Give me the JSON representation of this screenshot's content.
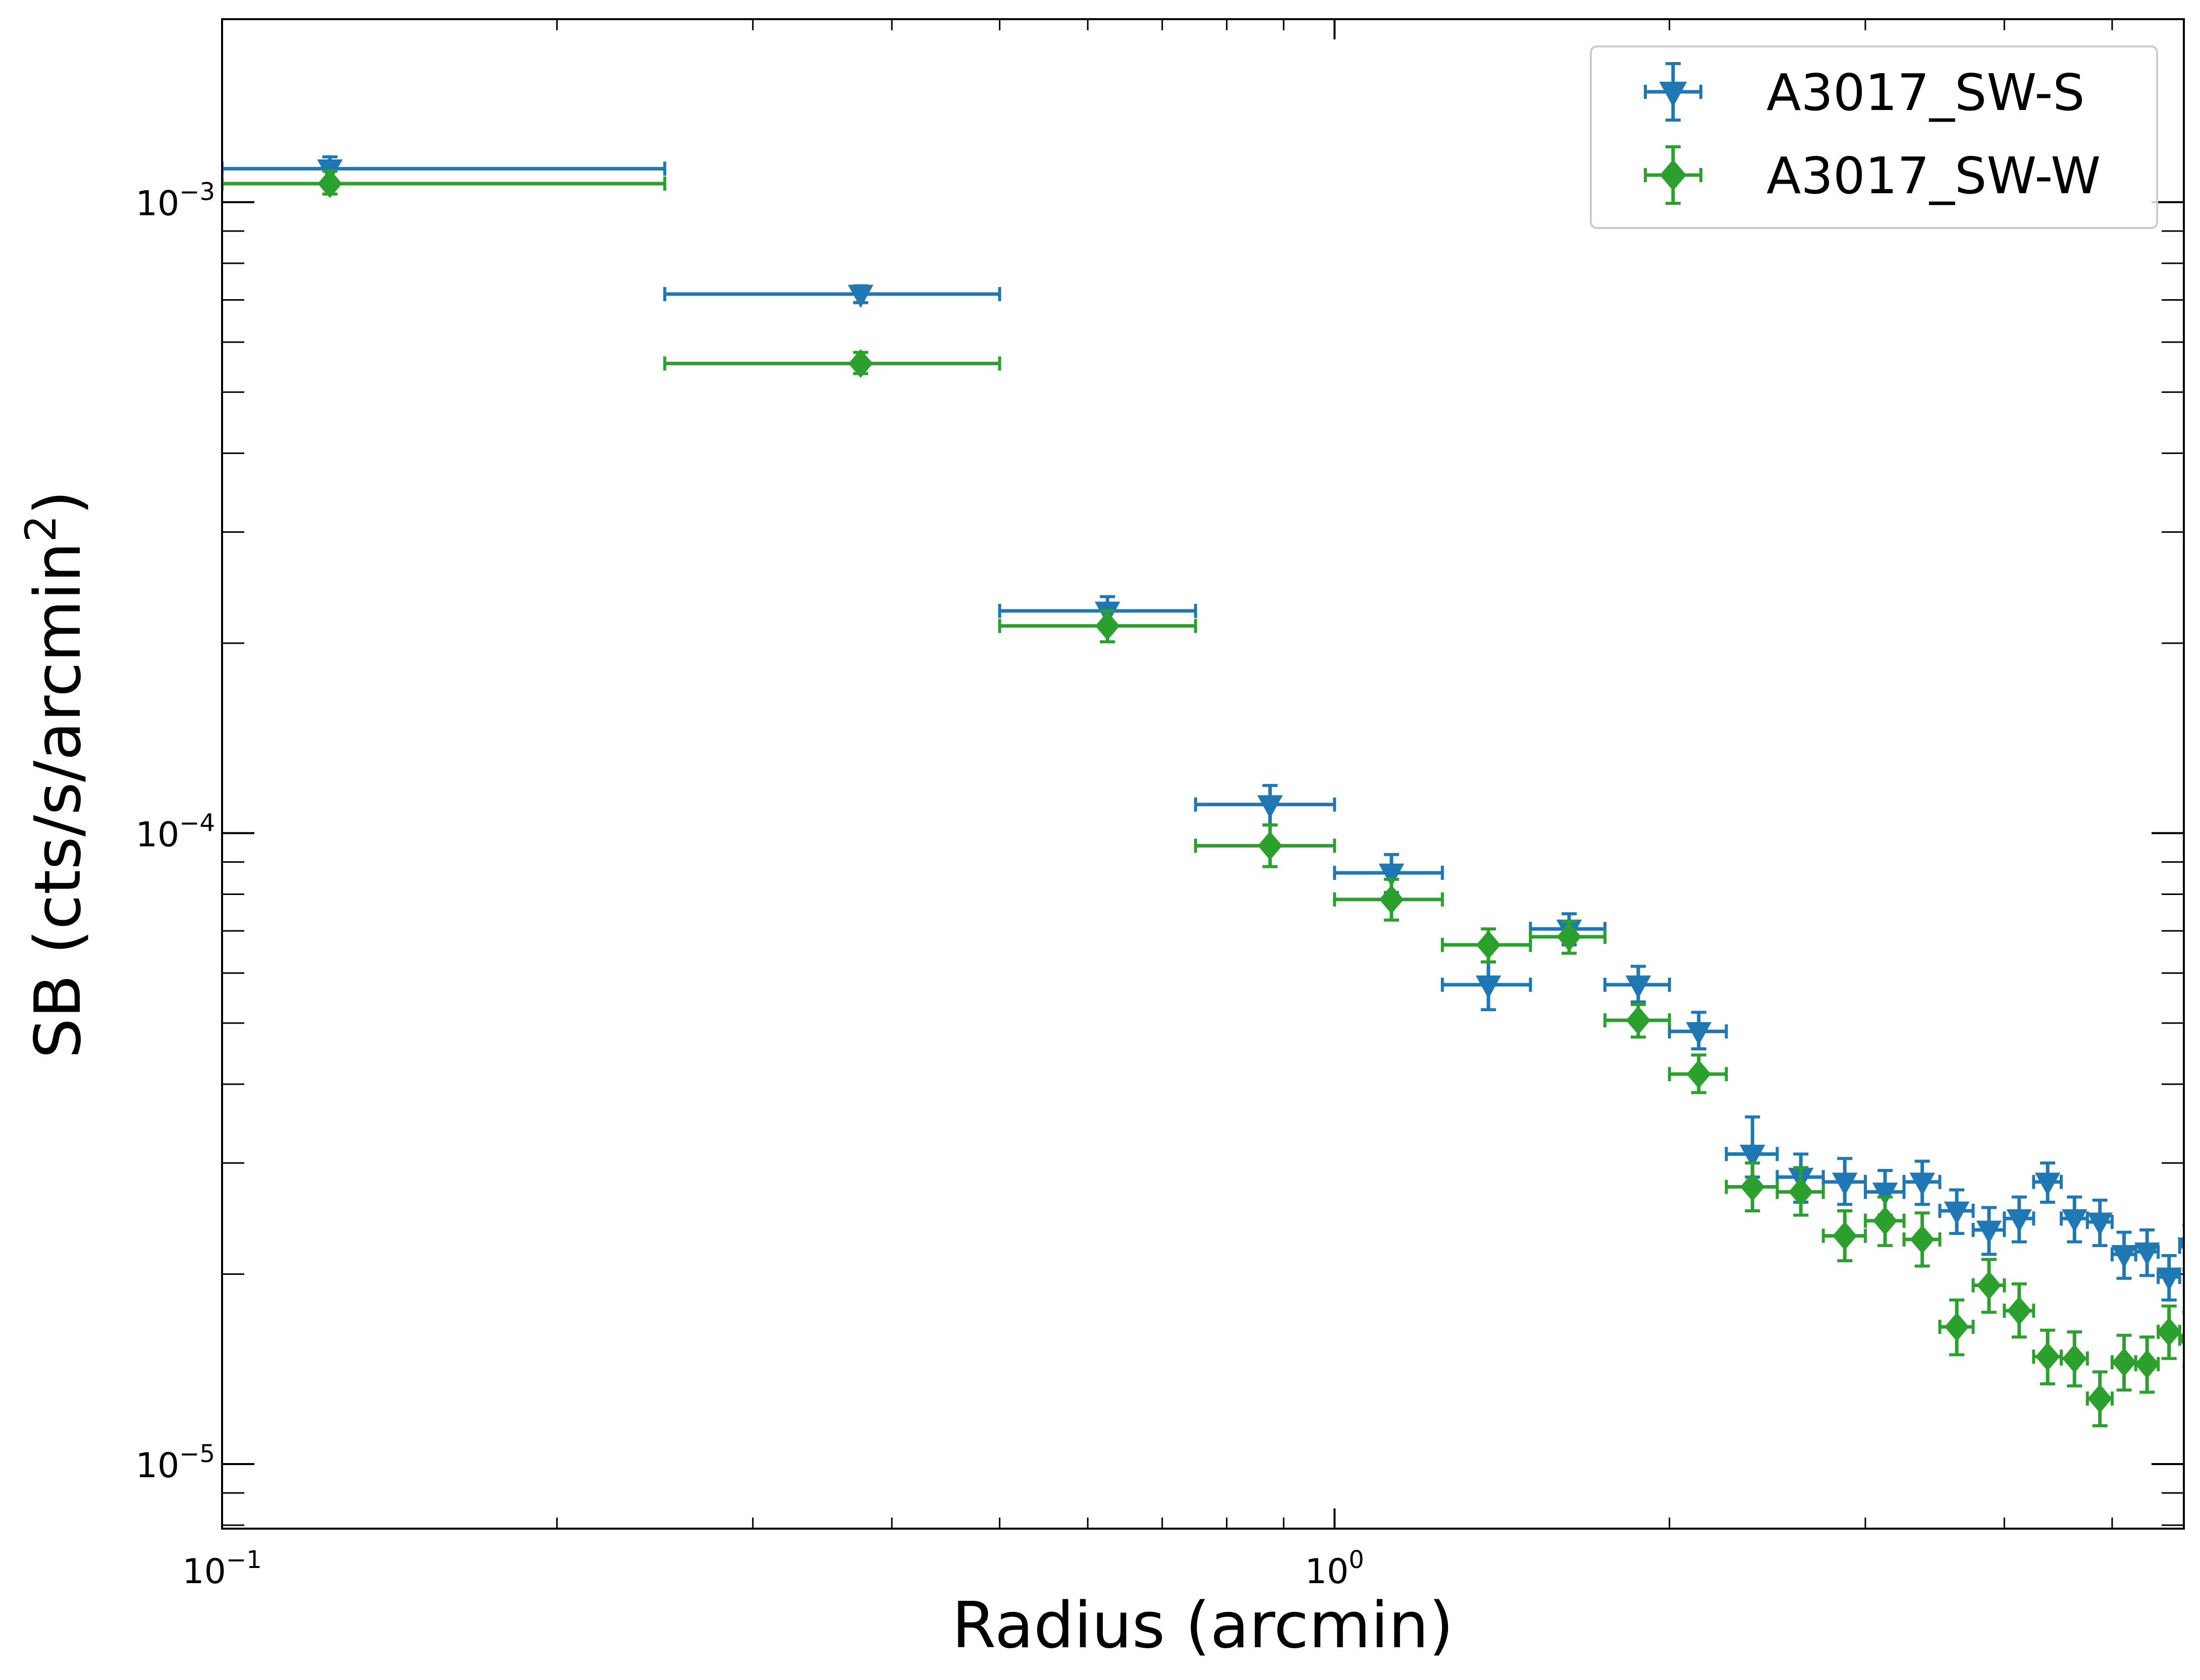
{
  "chart_data": {
    "type": "scatter",
    "xlabel": "Radius (arcmin)",
    "ylabel": "SB (cts/s/arcmin",
    "ylabel_superscript": "2",
    "ylabel_suffix": ")",
    "xscale": "log",
    "yscale": "log",
    "xlim": [
      0.1,
      5.8
    ],
    "ylim": [
      7.9e-06,
      0.00195
    ],
    "x_tick_labels": [
      {
        "value": 0.1,
        "base": "10",
        "exp": "−1"
      },
      {
        "value": 1,
        "base": "10",
        "exp": "0"
      }
    ],
    "y_tick_labels": [
      {
        "value": 1e-05,
        "base": "10",
        "exp": "−5"
      },
      {
        "value": 0.0001,
        "base": "10",
        "exp": "−4"
      },
      {
        "value": 0.001,
        "base": "10",
        "exp": "−3"
      }
    ],
    "grid": false,
    "legend": {
      "placement": "top-right"
    },
    "series": [
      {
        "name": "A3017_SW-S",
        "color": "#1f77b4",
        "marker": "triangle-down",
        "points": [
          {
            "x": 0.125,
            "xlo": 0.1,
            "xhi": 0.25,
            "y": 0.00113,
            "ylo": 0.00108,
            "yhi": 0.00118
          },
          {
            "x": 0.375,
            "xlo": 0.25,
            "xhi": 0.5,
            "y": 0.000715,
            "ylo": 0.000693,
            "yhi": 0.000737
          },
          {
            "x": 0.625,
            "xlo": 0.5,
            "xhi": 0.75,
            "y": 0.000225,
            "ylo": 0.000213,
            "yhi": 0.000237
          },
          {
            "x": 0.875,
            "xlo": 0.75,
            "xhi": 1.0,
            "y": 0.000111,
            "ylo": 0.000103,
            "yhi": 0.000119
          },
          {
            "x": 1.125,
            "xlo": 1.0,
            "xhi": 1.25,
            "y": 8.65e-05,
            "ylo": 8.05e-05,
            "yhi": 9.25e-05
          },
          {
            "x": 1.375,
            "xlo": 1.25,
            "xhi": 1.5,
            "y": 5.75e-05,
            "ylo": 5.25e-05,
            "yhi": 6.25e-05
          },
          {
            "x": 1.625,
            "xlo": 1.5,
            "xhi": 1.75,
            "y": 7.05e-05,
            "ylo": 6.65e-05,
            "yhi": 7.45e-05
          },
          {
            "x": 1.875,
            "xlo": 1.75,
            "xhi": 2.0,
            "y": 5.75e-05,
            "ylo": 5.4e-05,
            "yhi": 6.15e-05
          },
          {
            "x": 2.125,
            "xlo": 2.0,
            "xhi": 2.25,
            "y": 4.85e-05,
            "ylo": 4.55e-05,
            "yhi": 5.2e-05
          },
          {
            "x": 2.375,
            "xlo": 2.25,
            "xhi": 2.5,
            "y": 3.1e-05,
            "ylo": 2.85e-05,
            "yhi": 3.55e-05
          },
          {
            "x": 2.625,
            "xlo": 2.5,
            "xhi": 2.75,
            "y": 2.85e-05,
            "ylo": 2.6e-05,
            "yhi": 3.1e-05
          },
          {
            "x": 2.875,
            "xlo": 2.75,
            "xhi": 3.0,
            "y": 2.8e-05,
            "ylo": 2.58e-05,
            "yhi": 3.05e-05
          },
          {
            "x": 3.125,
            "xlo": 3.0,
            "xhi": 3.25,
            "y": 2.7e-05,
            "ylo": 2.48e-05,
            "yhi": 2.92e-05
          },
          {
            "x": 3.375,
            "xlo": 3.25,
            "xhi": 3.5,
            "y": 2.8e-05,
            "ylo": 2.58e-05,
            "yhi": 3.02e-05
          },
          {
            "x": 3.625,
            "xlo": 3.5,
            "xhi": 3.75,
            "y": 2.52e-05,
            "ylo": 2.32e-05,
            "yhi": 2.72e-05
          },
          {
            "x": 3.875,
            "xlo": 3.75,
            "xhi": 4.0,
            "y": 2.35e-05,
            "ylo": 2.15e-05,
            "yhi": 2.55e-05
          },
          {
            "x": 4.125,
            "xlo": 4.0,
            "xhi": 4.25,
            "y": 2.45e-05,
            "ylo": 2.25e-05,
            "yhi": 2.65e-05
          },
          {
            "x": 4.375,
            "xlo": 4.25,
            "xhi": 4.5,
            "y": 2.8e-05,
            "ylo": 2.6e-05,
            "yhi": 3e-05
          },
          {
            "x": 4.625,
            "xlo": 4.5,
            "xhi": 4.75,
            "y": 2.45e-05,
            "ylo": 2.25e-05,
            "yhi": 2.65e-05
          },
          {
            "x": 4.875,
            "xlo": 4.75,
            "xhi": 5.0,
            "y": 2.42e-05,
            "ylo": 2.22e-05,
            "yhi": 2.62e-05
          },
          {
            "x": 5.125,
            "xlo": 5.0,
            "xhi": 5.25,
            "y": 2.15e-05,
            "ylo": 1.97e-05,
            "yhi": 2.33e-05
          },
          {
            "x": 5.375,
            "xlo": 5.25,
            "xhi": 5.5,
            "y": 2.17e-05,
            "ylo": 1.99e-05,
            "yhi": 2.35e-05
          },
          {
            "x": 5.625,
            "xlo": 5.5,
            "xhi": 5.75,
            "y": 1.98e-05,
            "ylo": 1.82e-05,
            "yhi": 2.14e-05
          },
          {
            "x": 5.875,
            "xlo": 5.75,
            "xhi": 6.0,
            "y": 2.21e-05,
            "ylo": 2.03e-05,
            "yhi": 2.39e-05
          }
        ]
      },
      {
        "name": "A3017_SW-W",
        "color": "#2ca02c",
        "marker": "diamond",
        "points": [
          {
            "x": 0.125,
            "xlo": 0.1,
            "xhi": 0.25,
            "y": 0.00107,
            "ylo": 0.00103,
            "yhi": 0.00112
          },
          {
            "x": 0.375,
            "xlo": 0.25,
            "xhi": 0.5,
            "y": 0.000555,
            "ylo": 0.000535,
            "yhi": 0.000578
          },
          {
            "x": 0.625,
            "xlo": 0.5,
            "xhi": 0.75,
            "y": 0.000213,
            "ylo": 0.000201,
            "yhi": 0.000225
          },
          {
            "x": 0.875,
            "xlo": 0.75,
            "xhi": 1.0,
            "y": 9.55e-05,
            "ylo": 8.85e-05,
            "yhi": 0.000103
          },
          {
            "x": 1.125,
            "xlo": 1.0,
            "xhi": 1.25,
            "y": 7.85e-05,
            "ylo": 7.28e-05,
            "yhi": 8.45e-05
          },
          {
            "x": 1.375,
            "xlo": 1.25,
            "xhi": 1.5,
            "y": 6.65e-05,
            "ylo": 6.25e-05,
            "yhi": 7.05e-05
          },
          {
            "x": 1.625,
            "xlo": 1.5,
            "xhi": 1.75,
            "y": 6.85e-05,
            "ylo": 6.45e-05,
            "yhi": 7.25e-05
          },
          {
            "x": 1.875,
            "xlo": 1.75,
            "xhi": 2.0,
            "y": 5.05e-05,
            "ylo": 4.75e-05,
            "yhi": 5.35e-05
          },
          {
            "x": 2.125,
            "xlo": 2.0,
            "xhi": 2.25,
            "y": 4.15e-05,
            "ylo": 3.88e-05,
            "yhi": 4.45e-05
          },
          {
            "x": 2.375,
            "xlo": 2.25,
            "xhi": 2.5,
            "y": 2.75e-05,
            "ylo": 2.52e-05,
            "yhi": 3e-05
          },
          {
            "x": 2.625,
            "xlo": 2.5,
            "xhi": 2.75,
            "y": 2.7e-05,
            "ylo": 2.48e-05,
            "yhi": 2.95e-05
          },
          {
            "x": 2.875,
            "xlo": 2.75,
            "xhi": 3.0,
            "y": 2.3e-05,
            "ylo": 2.1e-05,
            "yhi": 2.52e-05
          },
          {
            "x": 3.125,
            "xlo": 3.0,
            "xhi": 3.25,
            "y": 2.43e-05,
            "ylo": 2.22e-05,
            "yhi": 2.65e-05
          },
          {
            "x": 3.375,
            "xlo": 3.25,
            "xhi": 3.5,
            "y": 2.27e-05,
            "ylo": 2.06e-05,
            "yhi": 2.5e-05
          },
          {
            "x": 3.625,
            "xlo": 3.5,
            "xhi": 3.75,
            "y": 1.65e-05,
            "ylo": 1.49e-05,
            "yhi": 1.82e-05
          },
          {
            "x": 3.875,
            "xlo": 3.75,
            "xhi": 4.0,
            "y": 1.92e-05,
            "ylo": 1.74e-05,
            "yhi": 2.11e-05
          },
          {
            "x": 4.125,
            "xlo": 4.0,
            "xhi": 4.25,
            "y": 1.75e-05,
            "ylo": 1.59e-05,
            "yhi": 1.93e-05
          },
          {
            "x": 4.375,
            "xlo": 4.25,
            "xhi": 4.5,
            "y": 1.48e-05,
            "ylo": 1.34e-05,
            "yhi": 1.63e-05
          },
          {
            "x": 4.625,
            "xlo": 4.5,
            "xhi": 4.75,
            "y": 1.47e-05,
            "ylo": 1.33e-05,
            "yhi": 1.62e-05
          },
          {
            "x": 4.875,
            "xlo": 4.75,
            "xhi": 5.0,
            "y": 1.27e-05,
            "ylo": 1.15e-05,
            "yhi": 1.4e-05
          },
          {
            "x": 5.125,
            "xlo": 5.0,
            "xhi": 5.25,
            "y": 1.45e-05,
            "ylo": 1.31e-05,
            "yhi": 1.6e-05
          },
          {
            "x": 5.375,
            "xlo": 5.25,
            "xhi": 5.5,
            "y": 1.44e-05,
            "ylo": 1.3e-05,
            "yhi": 1.59e-05
          },
          {
            "x": 5.625,
            "xlo": 5.5,
            "xhi": 5.75,
            "y": 1.62e-05,
            "ylo": 1.47e-05,
            "yhi": 1.78e-05
          },
          {
            "x": 5.875,
            "xlo": 5.75,
            "xhi": 6.0,
            "y": 1.58e-05,
            "ylo": 1.43e-05,
            "yhi": 1.74e-05
          }
        ]
      }
    ]
  }
}
